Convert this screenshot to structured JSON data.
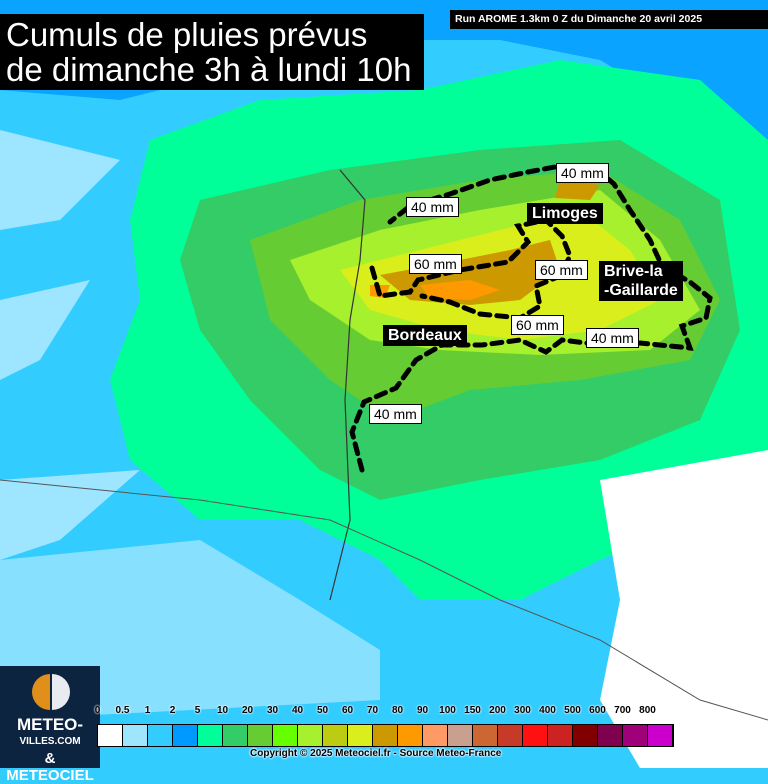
{
  "title": "Cumuls de pluies prévus\nde dimanche 3h à lundi 10h",
  "run_info": "Run AROME 1.3km 0 Z du Dimanche 20 avril 2025",
  "cities": [
    "Limoges",
    "Brive-la\n-Gaillarde",
    "Bordeaux"
  ],
  "contour_labels": [
    "40 mm",
    "40 mm",
    "60 mm",
    "60 mm",
    "60 mm",
    "40 mm",
    "40 mm"
  ],
  "legend": {
    "labels": [
      "0",
      "0.5",
      "1",
      "2",
      "5",
      "10",
      "20",
      "30",
      "40",
      "50",
      "60",
      "70",
      "80",
      "90",
      "100",
      "150",
      "200",
      "300",
      "400",
      "500",
      "600",
      "700",
      "800"
    ],
    "colors": [
      "#ffffff",
      "#9ee5ff",
      "#33ccff",
      "#0099ff",
      "#00ff99",
      "#33cc66",
      "#66cc33",
      "#66ff00",
      "#a6f02e",
      "#bbcc11",
      "#d9ee1a",
      "#cc9900",
      "#ff9900",
      "#ff9966",
      "#c9a090",
      "#cc6633",
      "#c83a28",
      "#ff1111",
      "#cc2222",
      "#800000",
      "#800050",
      "#a0007a",
      "#cc00cc"
    ],
    "unit": "mm"
  },
  "copyright": "Copyright © 2025 Meteociel.fr - Source Meteo-France",
  "logo": {
    "line1": "METEO-",
    "line2": "VILLES.COM",
    "line3": "& METEOCIEL"
  }
}
